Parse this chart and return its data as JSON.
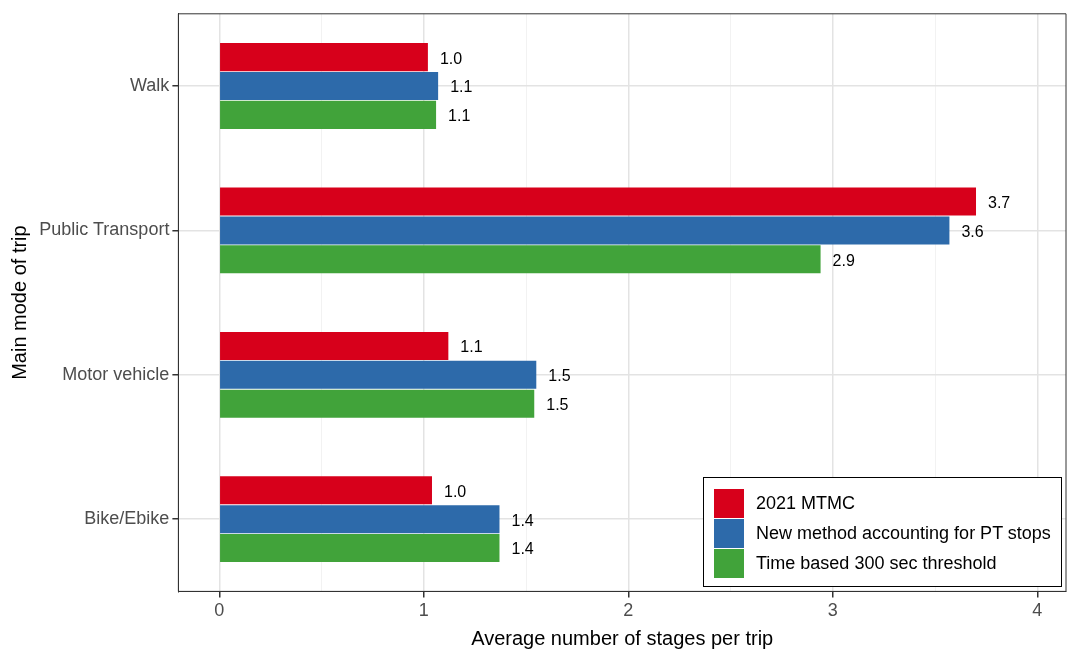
{
  "chart_data": {
    "type": "bar",
    "orientation": "horizontal",
    "xlabel": "Average number of stages per trip",
    "ylabel": "Main mode of trip",
    "categories": [
      "Walk",
      "Public Transport",
      "Motor vehicle",
      "Bike/Ebike"
    ],
    "series": [
      {
        "name": "2021 MTMC",
        "color": "#d7001b",
        "values": [
          1.02,
          3.7,
          1.12,
          1.04
        ],
        "value_labels": [
          "1.0",
          "3.7",
          "1.1",
          "1.0"
        ]
      },
      {
        "name": "New method accounting for PT stops",
        "color": "#2d6aaa",
        "values": [
          1.07,
          3.57,
          1.55,
          1.37
        ],
        "value_labels": [
          "1.1",
          "3.6",
          "1.5",
          "1.4"
        ]
      },
      {
        "name": "Time based 300 sec threshold",
        "color": "#41a33a",
        "values": [
          1.06,
          2.94,
          1.54,
          1.37
        ],
        "value_labels": [
          "1.1",
          "2.9",
          "1.5",
          "1.4"
        ]
      }
    ],
    "xlim": [
      -0.2,
      4.14
    ],
    "xticks": [
      0,
      {
        "value": 0.5,
        "label": null
      },
      1,
      {
        "value": 1.5,
        "label": null
      },
      2,
      {
        "value": 2.5,
        "label": null
      },
      3,
      {
        "value": 3.5,
        "label": null
      },
      4
    ],
    "grid": true,
    "legend": "bottom right"
  }
}
